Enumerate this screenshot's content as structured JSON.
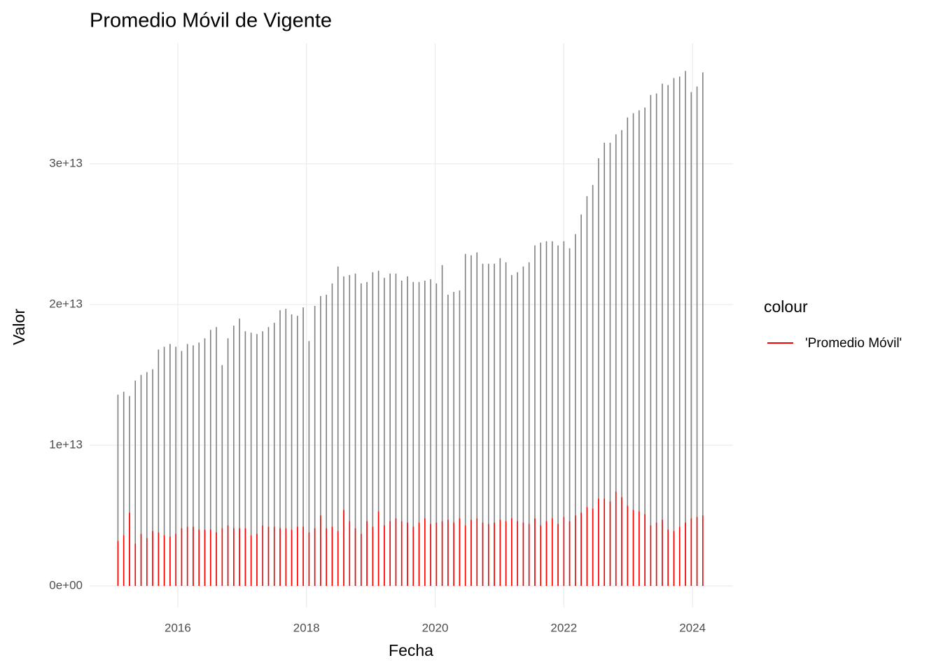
{
  "chart_data": {
    "type": "line",
    "title": "Promedio Móvil de Vigente",
    "x_label": "Fecha",
    "y_label": "Valor",
    "legend_title": "colour",
    "legend_position": "right",
    "grid": true,
    "xlim": [
      2014.63,
      2024.63
    ],
    "xticks": [
      2016,
      2018,
      2020,
      2022,
      2024
    ],
    "ylim": [
      -1540000000000.0,
      38560000000000.0
    ],
    "yticks": [
      {
        "value": 0,
        "label": "0e+00"
      },
      {
        "value": 10000000000000.0,
        "label": "1e+13"
      },
      {
        "value": 20000000000000.0,
        "label": "2e+13"
      },
      {
        "value": 30000000000000.0,
        "label": "3e+13"
      }
    ],
    "x": [
      2015.07,
      2015.16,
      2015.25,
      2015.34,
      2015.43,
      2015.52,
      2015.61,
      2015.7,
      2015.79,
      2015.88,
      2015.97,
      2016.06,
      2016.15,
      2016.24,
      2016.33,
      2016.42,
      2016.51,
      2016.6,
      2016.69,
      2016.78,
      2016.87,
      2016.96,
      2017.05,
      2017.14,
      2017.23,
      2017.32,
      2017.41,
      2017.5,
      2017.59,
      2017.68,
      2017.77,
      2017.86,
      2017.95,
      2018.04,
      2018.13,
      2018.22,
      2018.31,
      2018.4,
      2018.49,
      2018.58,
      2018.67,
      2018.76,
      2018.85,
      2018.94,
      2019.03,
      2019.12,
      2019.21,
      2019.3,
      2019.39,
      2019.48,
      2019.57,
      2019.66,
      2019.75,
      2019.84,
      2019.93,
      2020.02,
      2020.11,
      2020.2,
      2020.29,
      2020.38,
      2020.47,
      2020.56,
      2020.65,
      2020.74,
      2020.83,
      2020.92,
      2021.01,
      2021.1,
      2021.19,
      2021.28,
      2021.37,
      2021.46,
      2021.55,
      2021.64,
      2021.73,
      2021.82,
      2021.91,
      2022.0,
      2022.09,
      2022.18,
      2022.27,
      2022.36,
      2022.45,
      2022.54,
      2022.63,
      2022.72,
      2022.81,
      2022.9,
      2022.99,
      2023.08,
      2023.17,
      2023.26,
      2023.35,
      2023.44,
      2023.53,
      2023.62,
      2023.71,
      2023.8,
      2023.89,
      2023.98,
      2024.07,
      2024.16
    ],
    "series": [
      {
        "color": "#7f7f7f",
        "values": [
          13600000000000.0,
          13800000000000.0,
          13500000000000.0,
          14600000000000.0,
          15000000000000.0,
          15200000000000.0,
          15400000000000.0,
          16800000000000.0,
          17000000000000.0,
          17200000000000.0,
          17000000000000.0,
          16700000000000.0,
          17200000000000.0,
          17100000000000.0,
          17300000000000.0,
          17600000000000.0,
          18200000000000.0,
          18400000000000.0,
          15700000000000.0,
          17600000000000.0,
          18500000000000.0,
          19000000000000.0,
          18100000000000.0,
          18000000000000.0,
          17900000000000.0,
          18100000000000.0,
          18400000000000.0,
          18700000000000.0,
          19600000000000.0,
          19700000000000.0,
          19300000000000.0,
          19200000000000.0,
          19800000000000.0,
          17400000000000.0,
          19900000000000.0,
          20600000000000.0,
          20700000000000.0,
          21500000000000.0,
          22700000000000.0,
          22000000000000.0,
          22100000000000.0,
          22200000000000.0,
          21500000000000.0,
          21600000000000.0,
          22300000000000.0,
          22400000000000.0,
          21900000000000.0,
          22200000000000.0,
          22200000000000.0,
          21700000000000.0,
          22000000000000.0,
          21600000000000.0,
          21600000000000.0,
          21700000000000.0,
          21800000000000.0,
          21500000000000.0,
          22800000000000.0,
          20700000000000.0,
          20900000000000.0,
          21000000000000.0,
          23600000000000.0,
          23500000000000.0,
          23700000000000.0,
          22900000000000.0,
          22900000000000.0,
          22900000000000.0,
          23300000000000.0,
          23000000000000.0,
          22100000000000.0,
          22300000000000.0,
          22700000000000.0,
          23000000000000.0,
          24200000000000.0,
          24400000000000.0,
          24500000000000.0,
          24500000000000.0,
          24200000000000.0,
          24500000000000.0,
          24000000000000.0,
          25000000000000.0,
          26400000000000.0,
          27700000000000.0,
          28500000000000.0,
          30400000000000.0,
          31500000000000.0,
          31500000000000.0,
          32100000000000.0,
          32400000000000.0,
          33300000000000.0,
          33600000000000.0,
          33800000000000.0,
          34000000000000.0,
          34900000000000.0,
          35000000000000.0,
          35700000000000.0,
          35600000000000.0,
          36100000000000.0,
          36200000000000.0,
          36600000000000.0,
          35100000000000.0,
          35500000000000.0,
          36500000000000.0
        ]
      },
      {
        "name": "'Promedio Móvil'",
        "color": "#ff0000",
        "values": [
          3200000000000.0,
          3600000000000.0,
          5200000000000.0,
          3000000000000.0,
          3700000000000.0,
          3400000000000.0,
          3900000000000.0,
          3800000000000.0,
          3600000000000.0,
          3500000000000.0,
          3700000000000.0,
          4100000000000.0,
          4200000000000.0,
          4200000000000.0,
          4000000000000.0,
          4000000000000.0,
          4000000000000.0,
          3800000000000.0,
          4100000000000.0,
          4300000000000.0,
          4100000000000.0,
          4100000000000.0,
          4100000000000.0,
          3600000000000.0,
          3700000000000.0,
          4300000000000.0,
          4200000000000.0,
          4200000000000.0,
          4100000000000.0,
          4100000000000.0,
          4000000000000.0,
          4200000000000.0,
          4200000000000.0,
          3800000000000.0,
          4100000000000.0,
          5000000000000.0,
          4100000000000.0,
          4200000000000.0,
          3900000000000.0,
          5400000000000.0,
          4600000000000.0,
          4100000000000.0,
          3700000000000.0,
          4600000000000.0,
          4200000000000.0,
          5300000000000.0,
          4300000000000.0,
          4600000000000.0,
          4800000000000.0,
          4600000000000.0,
          4500000000000.0,
          4200000000000.0,
          4500000000000.0,
          4800000000000.0,
          4400000000000.0,
          4500000000000.0,
          4600000000000.0,
          4700000000000.0,
          4500000000000.0,
          4800000000000.0,
          4300000000000.0,
          4700000000000.0,
          4800000000000.0,
          4500000000000.0,
          4400000000000.0,
          4500000000000.0,
          4700000000000.0,
          4600000000000.0,
          4800000000000.0,
          4600000000000.0,
          4500000000000.0,
          4400000000000.0,
          4800000000000.0,
          4300000000000.0,
          4600000000000.0,
          4800000000000.0,
          4400000000000.0,
          4900000000000.0,
          4600000000000.0,
          5000000000000.0,
          5200000000000.0,
          5600000000000.0,
          5500000000000.0,
          6200000000000.0,
          6200000000000.0,
          6000000000000.0,
          6700000000000.0,
          6300000000000.0,
          5700000000000.0,
          5400000000000.0,
          5300000000000.0,
          5100000000000.0,
          4300000000000.0,
          4500000000000.0,
          4700000000000.0,
          4000000000000.0,
          3900000000000.0,
          4200000000000.0,
          4500000000000.0,
          4800000000000.0,
          4900000000000.0,
          5000000000000.0
        ]
      }
    ]
  }
}
